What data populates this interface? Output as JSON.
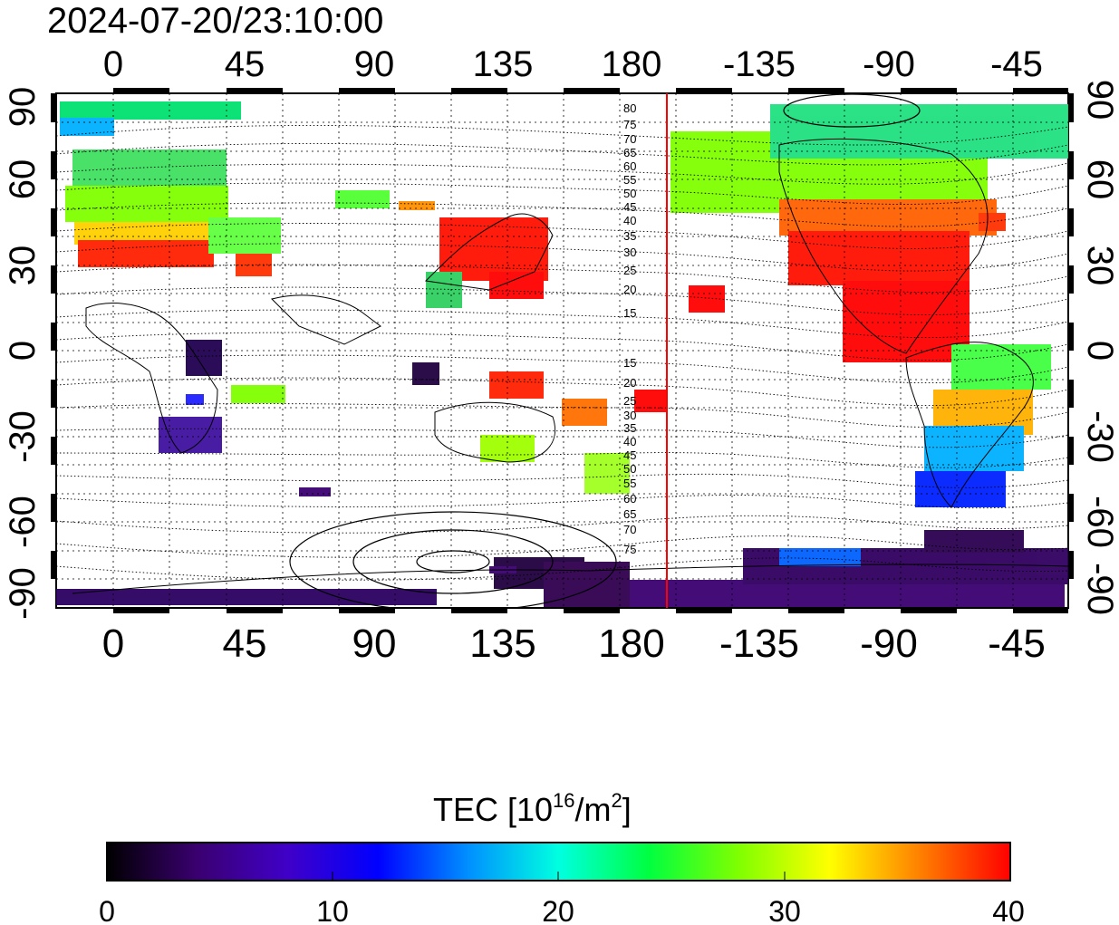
{
  "title": "2024-07-20/23:10:00",
  "lon_ticks": [
    "0",
    "45",
    "90",
    "135",
    "180",
    "-135",
    "-90",
    "-45"
  ],
  "lat_ticks": [
    "90",
    "60",
    "30",
    "0",
    "-30",
    "-60",
    "-90"
  ],
  "contour_labels_north": [
    "80",
    "75",
    "70",
    "65",
    "60",
    "55",
    "50",
    "45",
    "40",
    "35",
    "30",
    "25",
    "20",
    "15"
  ],
  "contour_labels_south": [
    "15",
    "20",
    "25",
    "30",
    "35",
    "40",
    "45",
    "50",
    "55",
    "60",
    "65",
    "70",
    "75"
  ],
  "colorbar": {
    "label_main": "TEC  [10",
    "label_exp1": "16",
    "label_mid": "/m",
    "label_exp2": "2",
    "label_end": "]",
    "ticks": [
      "0",
      "10",
      "20",
      "30",
      "40"
    ],
    "colors": [
      "#000000",
      "#3a0070",
      "#4000c8",
      "#0000ff",
      "#0090ff",
      "#00ffe0",
      "#00ff40",
      "#80ff00",
      "#ffff00",
      "#ff8000",
      "#ff0000"
    ]
  },
  "marker_line_color": "#ff0000",
  "map": {
    "lon_range_deg": [
      -20,
      340
    ],
    "lat_range_deg": [
      -90,
      90
    ],
    "marker_longitude_deg": 193
  }
}
